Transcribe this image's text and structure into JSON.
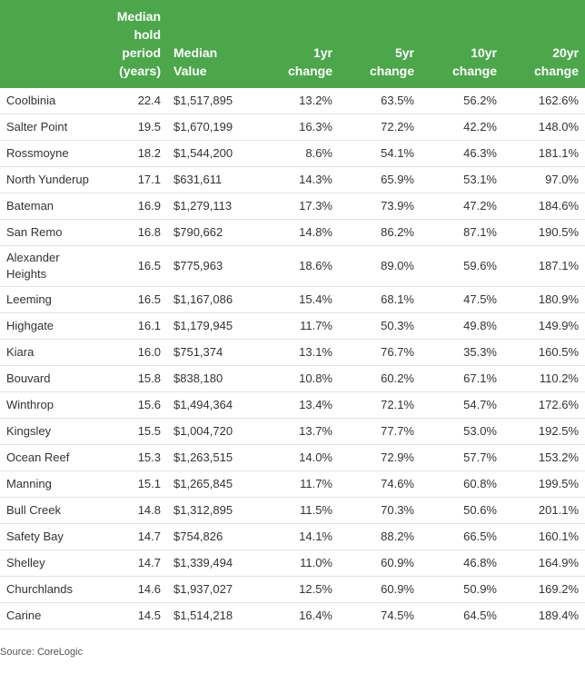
{
  "table": {
    "columns": [
      "",
      "Median hold period (years)",
      "Median Value",
      "1yr change",
      "5yr change",
      "10yr change",
      "20yr change"
    ],
    "rows": [
      [
        "Coolbinia",
        "22.4",
        "$1,517,895",
        "13.2%",
        "63.5%",
        "56.2%",
        "162.6%"
      ],
      [
        "Salter Point",
        "19.5",
        "$1,670,199",
        "16.3%",
        "72.2%",
        "42.2%",
        "148.0%"
      ],
      [
        "Rossmoyne",
        "18.2",
        "$1,544,200",
        "8.6%",
        "54.1%",
        "46.3%",
        "181.1%"
      ],
      [
        "North Yunderup",
        "17.1",
        "$631,611",
        "14.3%",
        "65.9%",
        "53.1%",
        "97.0%"
      ],
      [
        "Bateman",
        "16.9",
        "$1,279,113",
        "17.3%",
        "73.9%",
        "47.2%",
        "184.6%"
      ],
      [
        "San Remo",
        "16.8",
        "$790,662",
        "14.8%",
        "86.2%",
        "87.1%",
        "190.5%"
      ],
      [
        "Alexander Heights",
        "16.5",
        "$775,963",
        "18.6%",
        "89.0%",
        "59.6%",
        "187.1%"
      ],
      [
        "Leeming",
        "16.5",
        "$1,167,086",
        "15.4%",
        "68.1%",
        "47.5%",
        "180.9%"
      ],
      [
        "Highgate",
        "16.1",
        "$1,179,945",
        "11.7%",
        "50.3%",
        "49.8%",
        "149.9%"
      ],
      [
        "Kiara",
        "16.0",
        "$751,374",
        "13.1%",
        "76.7%",
        "35.3%",
        "160.5%"
      ],
      [
        "Bouvard",
        "15.8",
        "$838,180",
        "10.8%",
        "60.2%",
        "67.1%",
        "110.2%"
      ],
      [
        "Winthrop",
        "15.6",
        "$1,494,364",
        "13.4%",
        "72.1%",
        "54.7%",
        "172.6%"
      ],
      [
        "Kingsley",
        "15.5",
        "$1,004,720",
        "13.7%",
        "77.7%",
        "53.0%",
        "192.5%"
      ],
      [
        "Ocean Reef",
        "15.3",
        "$1,263,515",
        "14.0%",
        "72.9%",
        "57.7%",
        "153.2%"
      ],
      [
        "Manning",
        "15.1",
        "$1,265,845",
        "11.7%",
        "74.6%",
        "60.8%",
        "199.5%"
      ],
      [
        "Bull Creek",
        "14.8",
        "$1,312,895",
        "11.5%",
        "70.3%",
        "50.6%",
        "201.1%"
      ],
      [
        "Safety Bay",
        "14.7",
        "$754,826",
        "14.1%",
        "88.2%",
        "66.5%",
        "160.1%"
      ],
      [
        "Shelley",
        "14.7",
        "$1,339,494",
        "11.0%",
        "60.9%",
        "46.8%",
        "164.9%"
      ],
      [
        "Churchlands",
        "14.6",
        "$1,937,027",
        "12.5%",
        "60.9%",
        "50.9%",
        "169.2%"
      ],
      [
        "Carine",
        "14.5",
        "$1,514,218",
        "16.4%",
        "74.5%",
        "64.5%",
        "189.4%"
      ]
    ]
  },
  "source": "Source: CoreLogic"
}
